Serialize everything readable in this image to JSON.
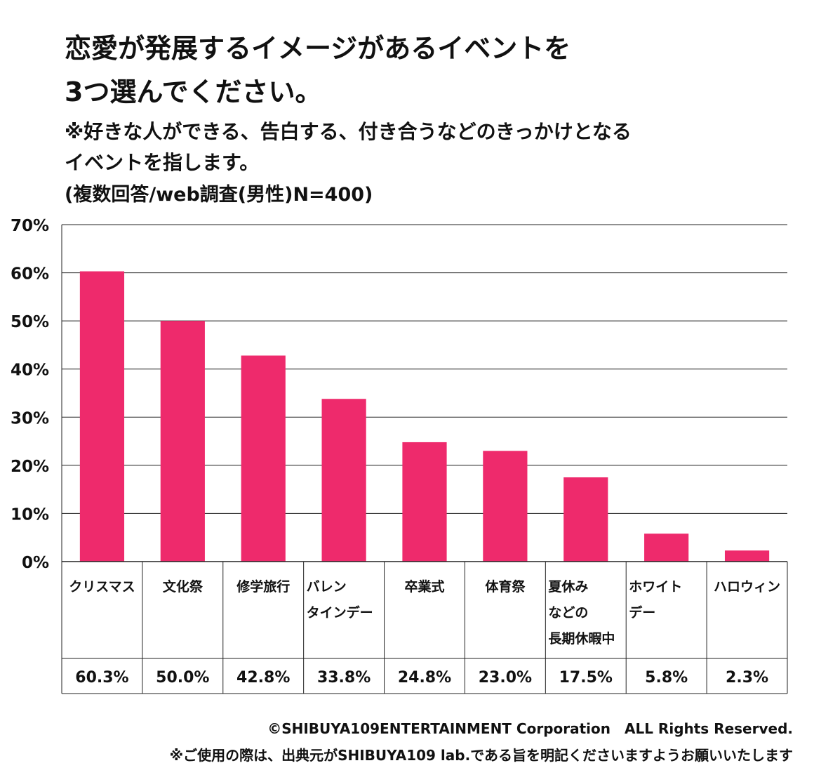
{
  "title_lines": [
    "恋愛が発展するイメージがあるイベントを",
    "3つ選んでください。"
  ],
  "note_lines": [
    "※好きな人ができる、告白する、付き合うなどのきっかけとなる",
    "イベントを指します。"
  ],
  "survey_info": "(複数回答/web調査(男性)N=400)",
  "chart_data": {
    "type": "bar",
    "categories": [
      [
        "クリスマス"
      ],
      [
        "文化祭"
      ],
      [
        "修学旅行"
      ],
      [
        "バレン",
        "タインデー"
      ],
      [
        "卒業式"
      ],
      [
        "体育祭"
      ],
      [
        "夏休み",
        "などの",
        "長期休暇中"
      ],
      [
        "ホワイト",
        "デー"
      ],
      [
        "ハロウィン"
      ]
    ],
    "values": [
      60.3,
      50.0,
      42.8,
      33.8,
      24.8,
      23.0,
      17.5,
      5.8,
      2.3
    ],
    "value_labels": [
      "60.3%",
      "50.0%",
      "42.8%",
      "33.8%",
      "24.8%",
      "23.0%",
      "17.5%",
      "5.8%",
      "2.3%"
    ],
    "ylim": [
      0,
      70
    ],
    "yticks": [
      0,
      10,
      20,
      30,
      40,
      50,
      60,
      70
    ],
    "ytick_labels": [
      "0%",
      "10%",
      "20%",
      "30%",
      "40%",
      "50%",
      "60%",
      "70%"
    ],
    "grid": true,
    "legend": "none",
    "bar_color": "#ee2a6c"
  },
  "footer": {
    "copyright": "©SHIBUYA109ENTERTAINMENT Corporation　ALL Rights Reserved.",
    "usage_note": "※ご使用の際は、出典元がSHIBUYA109 lab.である旨を明記くださいますようお願いいたします"
  }
}
